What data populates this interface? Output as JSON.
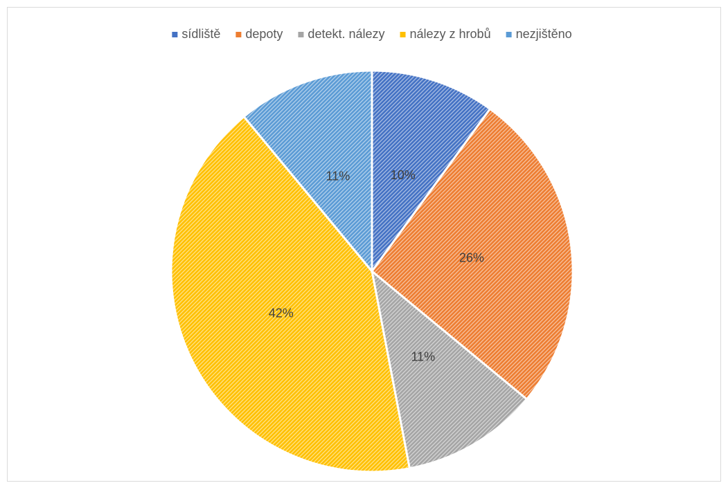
{
  "chart_data": {
    "type": "pie",
    "categories": [
      "sídliště",
      "depoty",
      "detekt. nálezy",
      "nálezy z hrobů",
      "nezjištěno"
    ],
    "values": [
      10,
      26,
      11,
      42,
      11
    ],
    "value_labels": [
      "10%",
      "26%",
      "11%",
      "42%",
      "11%"
    ],
    "colors": [
      "#4472c4",
      "#ed7d31",
      "#a5a5a5",
      "#ffc000",
      "#5b9bd5"
    ],
    "legend": "top"
  }
}
